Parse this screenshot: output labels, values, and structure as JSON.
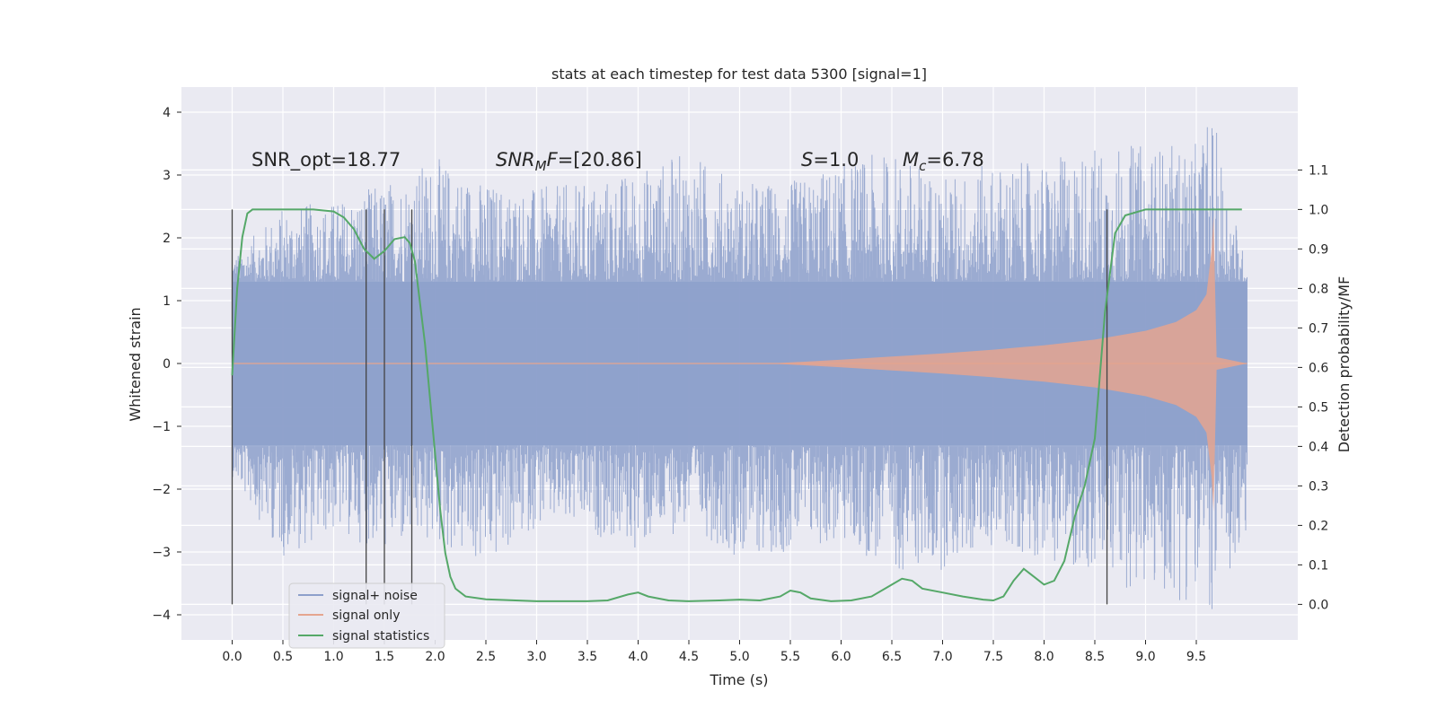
{
  "chart_data": {
    "type": "line",
    "title": "stats at each timestep for test data 5300 [signal=1]",
    "xlabel": "Time (s)",
    "ylabel": "Whitened strain",
    "y2label": "Detection probability/MF",
    "xlim": [
      -0.5,
      10.5
    ],
    "ylim": [
      -4.4,
      4.4
    ],
    "y2lim": [
      -0.09,
      1.31
    ],
    "xticks": [
      0.0,
      0.5,
      1.0,
      1.5,
      2.0,
      2.5,
      3.0,
      3.5,
      4.0,
      4.5,
      5.0,
      5.5,
      6.0,
      6.5,
      7.0,
      7.5,
      8.0,
      8.5,
      9.0,
      9.5
    ],
    "xtick_labels": [
      "0.0",
      "0.5",
      "1.0",
      "1.5",
      "2.0",
      "2.5",
      "3.0",
      "3.5",
      "4.0",
      "4.5",
      "5.0",
      "5.5",
      "6.0",
      "6.5",
      "7.0",
      "7.5",
      "8.0",
      "8.5",
      "9.0",
      "9.5"
    ],
    "yticks": [
      4,
      3,
      2,
      1,
      0,
      -1,
      -2,
      -3,
      -4
    ],
    "ytick_labels": [
      "4",
      "3",
      "2",
      "1",
      "0",
      "−1",
      "−2",
      "−3",
      "−4"
    ],
    "y2ticks": [
      1.1,
      1.0,
      0.9,
      0.8,
      0.7,
      0.6,
      0.5,
      0.4,
      0.3,
      0.2,
      0.1,
      0.0
    ],
    "y2tick_labels": [
      "1.1",
      "1.0",
      "0.9",
      "0.8",
      "0.7",
      "0.6",
      "0.5",
      "0.4",
      "0.3",
      "0.2",
      "0.1",
      "0.0"
    ],
    "grid": true,
    "legend_position": "bottom-left",
    "annotations": {
      "snr_opt": "SNR_opt=18.77",
      "snr_mf_italic": "SNR",
      "snr_mf_sub": "M",
      "snr_mf_tail": "F",
      "snr_mf_value": "=[20.86]",
      "s_italic": "S",
      "s_value": "=1.0",
      "mc_italic": "M",
      "mc_sub": "c",
      "mc_value": "=6.78"
    },
    "series": [
      {
        "name": "signal+ noise",
        "color": "#8da0cb",
        "x_range": [
          0.0,
          10.0
        ],
        "envelope_x": [
          0.0,
          0.5,
          1.0,
          1.5,
          2.0,
          2.5,
          3.0,
          3.5,
          4.0,
          4.5,
          5.0,
          5.5,
          6.0,
          6.5,
          7.0,
          7.5,
          8.0,
          8.5,
          9.0,
          9.5,
          9.65,
          10.0
        ],
        "envelope_upper": [
          1.7,
          2.5,
          2.6,
          2.9,
          3.3,
          2.9,
          2.8,
          2.9,
          3.1,
          3.4,
          2.9,
          2.9,
          3.2,
          3.4,
          3.0,
          3.2,
          3.2,
          3.5,
          3.5,
          3.5,
          4.05,
          1.5
        ],
        "envelope_lower": [
          -1.8,
          -3.1,
          -2.7,
          -3.0,
          -2.9,
          -3.3,
          -2.6,
          -2.7,
          -3.0,
          -2.6,
          -3.1,
          -3.0,
          -2.9,
          -3.3,
          -3.3,
          -2.9,
          -3.1,
          -3.4,
          -3.7,
          -3.8,
          -4.0,
          -3.1
        ]
      },
      {
        "name": "signal only",
        "color": "#e5a58f",
        "x": [
          5.3,
          6.0,
          6.5,
          7.0,
          7.5,
          8.0,
          8.5,
          9.0,
          9.3,
          9.5,
          9.6,
          9.65,
          9.67,
          9.7,
          10.0
        ],
        "amplitude": [
          0.0,
          0.06,
          0.11,
          0.16,
          0.22,
          0.29,
          0.38,
          0.52,
          0.66,
          0.85,
          1.1,
          1.8,
          2.35,
          0.1,
          0.0
        ]
      },
      {
        "name": "signal statistics",
        "color": "#55a868",
        "x": [
          0.0,
          0.05,
          0.1,
          0.15,
          0.2,
          0.3,
          0.5,
          0.8,
          1.0,
          1.1,
          1.2,
          1.3,
          1.4,
          1.5,
          1.6,
          1.7,
          1.75,
          1.8,
          1.9,
          2.0,
          2.05,
          2.1,
          2.15,
          2.2,
          2.3,
          2.5,
          3.0,
          3.5,
          3.7,
          3.9,
          4.0,
          4.1,
          4.3,
          4.5,
          4.8,
          5.0,
          5.2,
          5.4,
          5.5,
          5.6,
          5.7,
          5.9,
          6.1,
          6.3,
          6.5,
          6.6,
          6.7,
          6.8,
          7.0,
          7.2,
          7.4,
          7.5,
          7.6,
          7.7,
          7.8,
          7.9,
          8.0,
          8.1,
          8.2,
          8.3,
          8.4,
          8.5,
          8.6,
          8.7,
          8.8,
          9.0,
          9.5,
          9.95
        ],
        "y": [
          0.58,
          0.8,
          0.93,
          0.99,
          1.0,
          1.0,
          1.0,
          1.0,
          0.995,
          0.98,
          0.95,
          0.9,
          0.875,
          0.895,
          0.925,
          0.93,
          0.915,
          0.87,
          0.66,
          0.38,
          0.24,
          0.13,
          0.07,
          0.04,
          0.02,
          0.013,
          0.008,
          0.008,
          0.01,
          0.025,
          0.03,
          0.02,
          0.01,
          0.008,
          0.01,
          0.012,
          0.01,
          0.02,
          0.035,
          0.03,
          0.015,
          0.008,
          0.01,
          0.02,
          0.05,
          0.065,
          0.06,
          0.04,
          0.03,
          0.02,
          0.012,
          0.01,
          0.02,
          0.06,
          0.09,
          0.07,
          0.05,
          0.06,
          0.11,
          0.22,
          0.3,
          0.42,
          0.74,
          0.94,
          0.985,
          1.0,
          1.0,
          1.0
        ]
      }
    ],
    "vertical_markers_x": [
      0.0,
      1.32,
      1.5,
      1.77,
      8.62
    ],
    "vertical_markers_range": [
      -0.0,
      1.0
    ]
  }
}
